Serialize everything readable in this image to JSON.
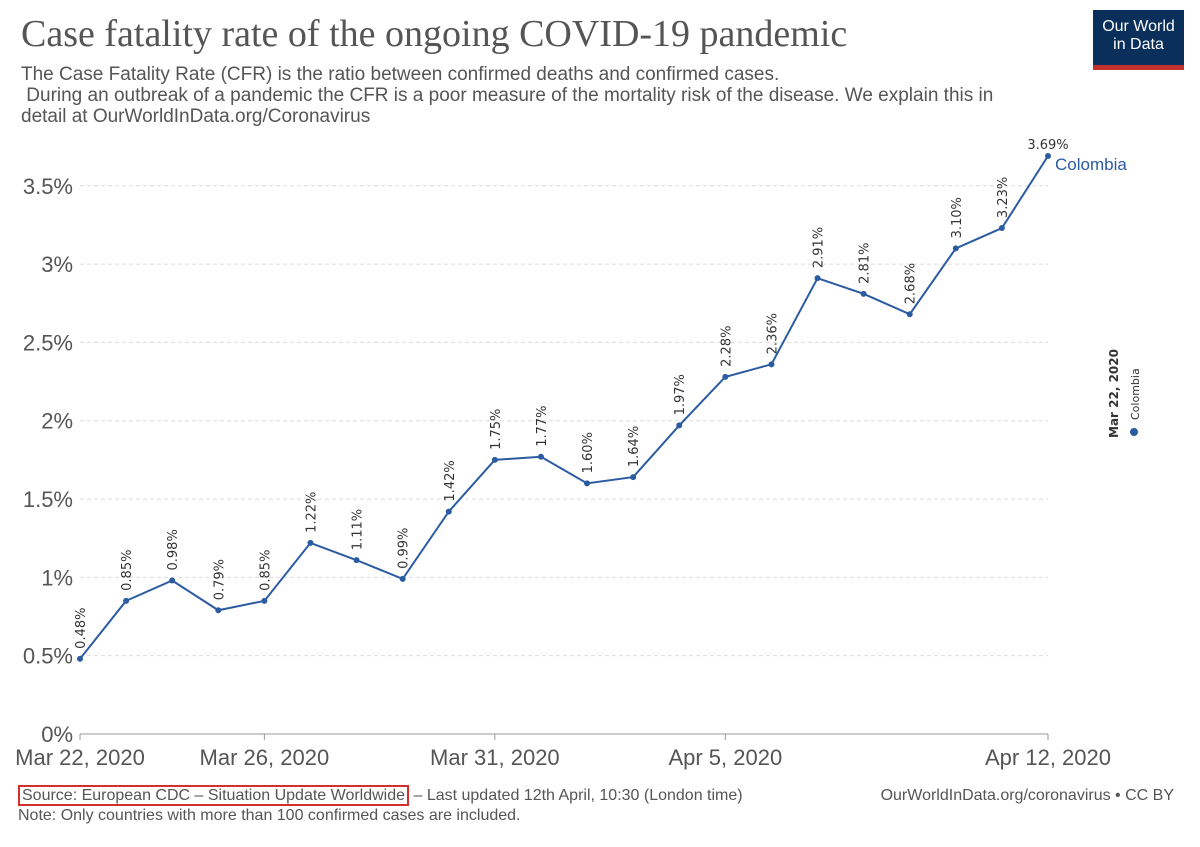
{
  "header": {
    "title": "Case fatality rate of the ongoing COVID-19 pandemic",
    "subtitle_lines": [
      "The Case Fatality Rate (CFR) is the ratio between confirmed deaths and confirmed cases.",
      " During an outbreak of a pandemic the CFR is a poor measure of the mortality risk of the disease. We explain this in",
      "detail at OurWorldInData.org/Coronavirus"
    ],
    "logo_line1": "Our World",
    "logo_line2": "in Data"
  },
  "footer": {
    "source": "Source: European CDC – Situation Update Worldwide",
    "updated": " – Last updated 12th April, 10:30 (London time)",
    "site": "OurWorldInData.org/coronavirus • CC BY",
    "note": "Note: Only countries with more than 100 confirmed cases are included."
  },
  "legend": {
    "date": "Mar 22, 2020",
    "entry": "Colombia",
    "placement": "right, rotated"
  },
  "colors": {
    "series": "#2b5ba0",
    "grid": "#dcdcdc",
    "text": "#555555",
    "logo_bg": "#0b2f5b",
    "logo_accent": "#c4302b",
    "source_box": "#d32f2f"
  },
  "chart_data": {
    "type": "line",
    "title": "Case fatality rate of the ongoing COVID-19 pandemic",
    "xlabel": "",
    "ylabel": "",
    "ylim": [
      0,
      3.69
    ],
    "y_ticks": [
      0,
      0.5,
      1,
      1.5,
      2,
      2.5,
      3,
      3.5
    ],
    "y_tick_labels": [
      "0%",
      "0.5%",
      "1%",
      "1.5%",
      "2%",
      "2.5%",
      "3%",
      "3.5%"
    ],
    "x_tick_labels": [
      "Mar 22, 2020",
      "Mar 26, 2020",
      "Mar 31, 2020",
      "Apr 5, 2020",
      "Apr 12, 2020"
    ],
    "x_tick_dates": [
      "2020-03-22",
      "2020-03-26",
      "2020-03-31",
      "2020-04-05",
      "2020-04-12"
    ],
    "grid": true,
    "series": [
      {
        "name": "Colombia",
        "x": [
          "2020-03-22",
          "2020-03-23",
          "2020-03-24",
          "2020-03-25",
          "2020-03-26",
          "2020-03-27",
          "2020-03-28",
          "2020-03-29",
          "2020-03-30",
          "2020-03-31",
          "2020-04-01",
          "2020-04-02",
          "2020-04-03",
          "2020-04-04",
          "2020-04-05",
          "2020-04-06",
          "2020-04-07",
          "2020-04-08",
          "2020-04-09",
          "2020-04-10",
          "2020-04-11",
          "2020-04-12"
        ],
        "values": [
          0.48,
          0.85,
          0.98,
          0.79,
          0.85,
          1.22,
          1.11,
          0.99,
          1.42,
          1.75,
          1.77,
          1.6,
          1.64,
          1.97,
          2.28,
          2.36,
          2.91,
          2.81,
          2.68,
          3.1,
          3.23,
          3.69
        ],
        "labels": [
          "0.48%",
          "0.85%",
          "0.98%",
          "0.79%",
          "0.85%",
          "1.22%",
          "1.11%",
          "0.99%",
          "1.42%",
          "1.75%",
          "1.77%",
          "1.60%",
          "1.64%",
          "1.97%",
          "2.28%",
          "2.36%",
          "2.91%",
          "2.81%",
          "2.68%",
          "3.10%",
          "3.23%",
          "3.69%"
        ]
      }
    ]
  }
}
